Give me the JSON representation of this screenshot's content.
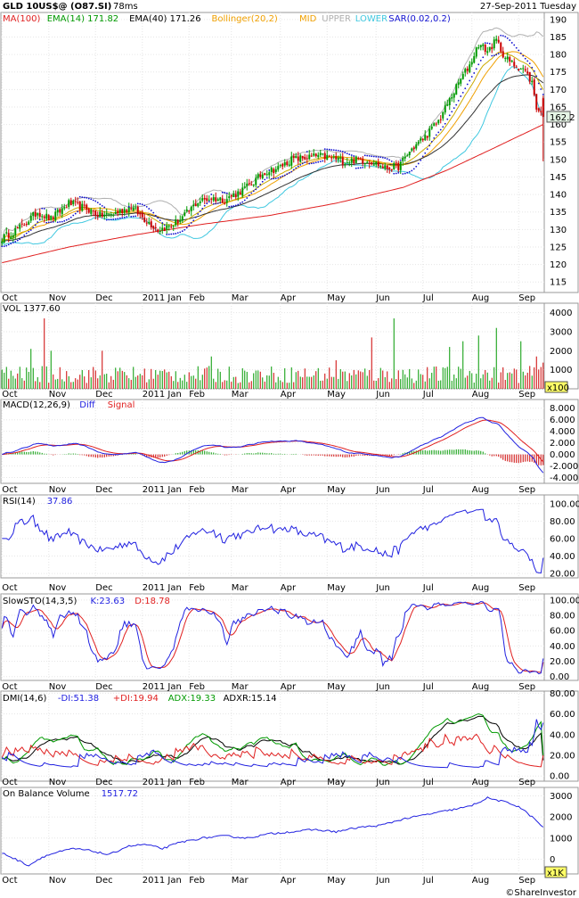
{
  "header": {
    "symbol": "GLD 10US$@ (O87.SI)",
    "time": "78ms",
    "date": "27-Sep-2011 Tuesday"
  },
  "footer": {
    "watermark": "©ShareInvestor"
  },
  "colors": {
    "ma100": "#e02020",
    "ema14": "#ccaa00",
    "ema40": "#333333",
    "bb_mid": "#f0a000",
    "bb_upper": "#b0b0b0",
    "bb_lower": "#40c8e0",
    "sar": "#1010d0",
    "up": "#009900",
    "down": "#cc0000",
    "diff": "#2020e0",
    "signal": "#e02020",
    "rsi": "#2020e0",
    "k": "#2020e0",
    "d": "#e02020",
    "mdi": "#2020e0",
    "pdi": "#e02020",
    "adx": "#009900",
    "adxr": "#000000",
    "obv": "#2020e0"
  },
  "x_months": [
    "Oct",
    "Nov",
    "Dec",
    "2011 Jan",
    "Feb",
    "Mar",
    "Apr",
    "May",
    "Jun",
    "Jul",
    "Aug",
    "Sep"
  ],
  "chart_data": [
    {
      "type": "candlestick",
      "id": "price",
      "legend": [
        "MA(100)",
        "EMA(14) 171.82",
        "EMA(40) 171.26",
        "Bollinger(20,2)",
        "MID",
        "UPPER",
        "LOWER",
        "SAR(0.02,0.2)"
      ],
      "ylim": [
        112,
        192
      ],
      "yticks": [
        115,
        120,
        125,
        130,
        135,
        140,
        145,
        150,
        155,
        160,
        165,
        170,
        175,
        180,
        185,
        190
      ],
      "last_price": "162.2",
      "close_anchors": [
        [
          0,
          127.5
        ],
        [
          8,
          130.5
        ],
        [
          16,
          135
        ],
        [
          22,
          133
        ],
        [
          30,
          137.5
        ],
        [
          38,
          136
        ],
        [
          44,
          134
        ],
        [
          50,
          134.5
        ],
        [
          58,
          136.5
        ],
        [
          64,
          133
        ],
        [
          70,
          130
        ],
        [
          76,
          131
        ],
        [
          82,
          134
        ],
        [
          88,
          138
        ],
        [
          94,
          139
        ],
        [
          100,
          138.5
        ],
        [
          106,
          140.5
        ],
        [
          112,
          143
        ],
        [
          118,
          146.5
        ],
        [
          124,
          147.5
        ],
        [
          130,
          150
        ],
        [
          136,
          150.5
        ],
        [
          142,
          151
        ],
        [
          148,
          150.5
        ],
        [
          154,
          149.5
        ],
        [
          160,
          150
        ],
        [
          166,
          149.5
        ],
        [
          172,
          147.5
        ],
        [
          178,
          148
        ],
        [
          184,
          153
        ],
        [
          190,
          156.5
        ],
        [
          196,
          161
        ],
        [
          201,
          167
        ],
        [
          206,
          173
        ],
        [
          210,
          177
        ],
        [
          214,
          183
        ],
        [
          218,
          181
        ],
        [
          222,
          184
        ],
        [
          226,
          179
        ],
        [
          230,
          177
        ],
        [
          234,
          176
        ],
        [
          238,
          172
        ],
        [
          240,
          165
        ],
        [
          243,
          162.2
        ]
      ],
      "ma100_anchors": [
        [
          0,
          120.5
        ],
        [
          30,
          125
        ],
        [
          60,
          128.5
        ],
        [
          90,
          131.5
        ],
        [
          120,
          134
        ],
        [
          150,
          137.5
        ],
        [
          180,
          142
        ],
        [
          200,
          147
        ],
        [
          220,
          153
        ],
        [
          243,
          160
        ]
      ],
      "ema14_final": 171.82,
      "ema40_final": 171.26
    },
    {
      "type": "bar",
      "id": "volume",
      "legend": [
        "VOL 1377.60"
      ],
      "ylim": [
        0,
        4500
      ],
      "yticks": [
        0,
        1000,
        2000,
        3000,
        4000
      ],
      "unit_badge": "x100",
      "spikes": [
        [
          13,
          2100
        ],
        [
          19,
          3700
        ],
        [
          22,
          2000
        ],
        [
          45,
          2000
        ],
        [
          94,
          1700
        ],
        [
          150,
          1500
        ],
        [
          166,
          2700
        ],
        [
          176,
          3700
        ],
        [
          201,
          2200
        ],
        [
          207,
          2500
        ],
        [
          214,
          2800
        ],
        [
          222,
          3200
        ],
        [
          233,
          2500
        ],
        [
          240,
          1700
        ]
      ],
      "last": 1377.6
    },
    {
      "type": "line",
      "id": "macd",
      "legend": [
        "MACD(12,26,9)",
        "Diff",
        "Signal"
      ],
      "ylim": [
        -5,
        9.5
      ],
      "yticks": [
        -4,
        -2,
        0,
        2,
        4,
        6,
        8
      ],
      "ytick_labels": [
        "-4.000",
        "-2.000",
        "0.000",
        "2.000",
        "4.000",
        "6.000",
        "8.000"
      ]
    },
    {
      "type": "line",
      "id": "rsi",
      "legend": [
        "RSI(14)",
        "37.86"
      ],
      "ylim": [
        15,
        110
      ],
      "yticks": [
        20,
        40,
        60,
        80,
        100
      ],
      "ytick_labels": [
        "20.00",
        "40.00",
        "60.00",
        "80.00",
        "100.00"
      ],
      "last": 37.86
    },
    {
      "type": "line",
      "id": "stoch",
      "legend": [
        "SlowSTO(14,3,5)",
        "K:23.63",
        "D:18.78"
      ],
      "ylim": [
        -5,
        108
      ],
      "yticks": [
        0,
        20,
        40,
        60,
        80,
        100
      ],
      "ytick_labels": [
        "0.00",
        "20.00",
        "40.00",
        "60.00",
        "80.00",
        "100.00"
      ],
      "k_last": 23.63,
      "d_last": 18.78
    },
    {
      "type": "line",
      "id": "dmi",
      "legend": [
        "DMI(14,6)",
        "-DI:51.38",
        "+DI:19.94",
        "ADX:19.33",
        "ADXR:15.14"
      ],
      "ylim": [
        -5,
        82
      ],
      "yticks": [
        0,
        20,
        40,
        60,
        80
      ],
      "ytick_labels": [
        "0.00",
        "20.00",
        "40.00",
        "60.00",
        "80.00"
      ]
    },
    {
      "type": "area",
      "id": "obv",
      "legend": [
        "On Balance Volume",
        "1517.72"
      ],
      "ylim": [
        -700,
        3400
      ],
      "yticks": [
        0,
        1000,
        2000,
        3000
      ],
      "unit_badge": "x1K",
      "anchors": [
        [
          0,
          300
        ],
        [
          8,
          -100
        ],
        [
          12,
          -300
        ],
        [
          18,
          100
        ],
        [
          24,
          300
        ],
        [
          32,
          500
        ],
        [
          40,
          400
        ],
        [
          48,
          200
        ],
        [
          56,
          600
        ],
        [
          64,
          700
        ],
        [
          72,
          500
        ],
        [
          80,
          800
        ],
        [
          90,
          1000
        ],
        [
          100,
          1100
        ],
        [
          110,
          1000
        ],
        [
          120,
          1200
        ],
        [
          130,
          1300
        ],
        [
          140,
          1400
        ],
        [
          150,
          1300
        ],
        [
          160,
          1500
        ],
        [
          170,
          1600
        ],
        [
          180,
          1900
        ],
        [
          190,
          2100
        ],
        [
          200,
          2300
        ],
        [
          210,
          2500
        ],
        [
          218,
          2900
        ],
        [
          226,
          2700
        ],
        [
          232,
          2500
        ],
        [
          238,
          2000
        ],
        [
          243,
          1517.72
        ]
      ],
      "last": 1517.72
    }
  ]
}
